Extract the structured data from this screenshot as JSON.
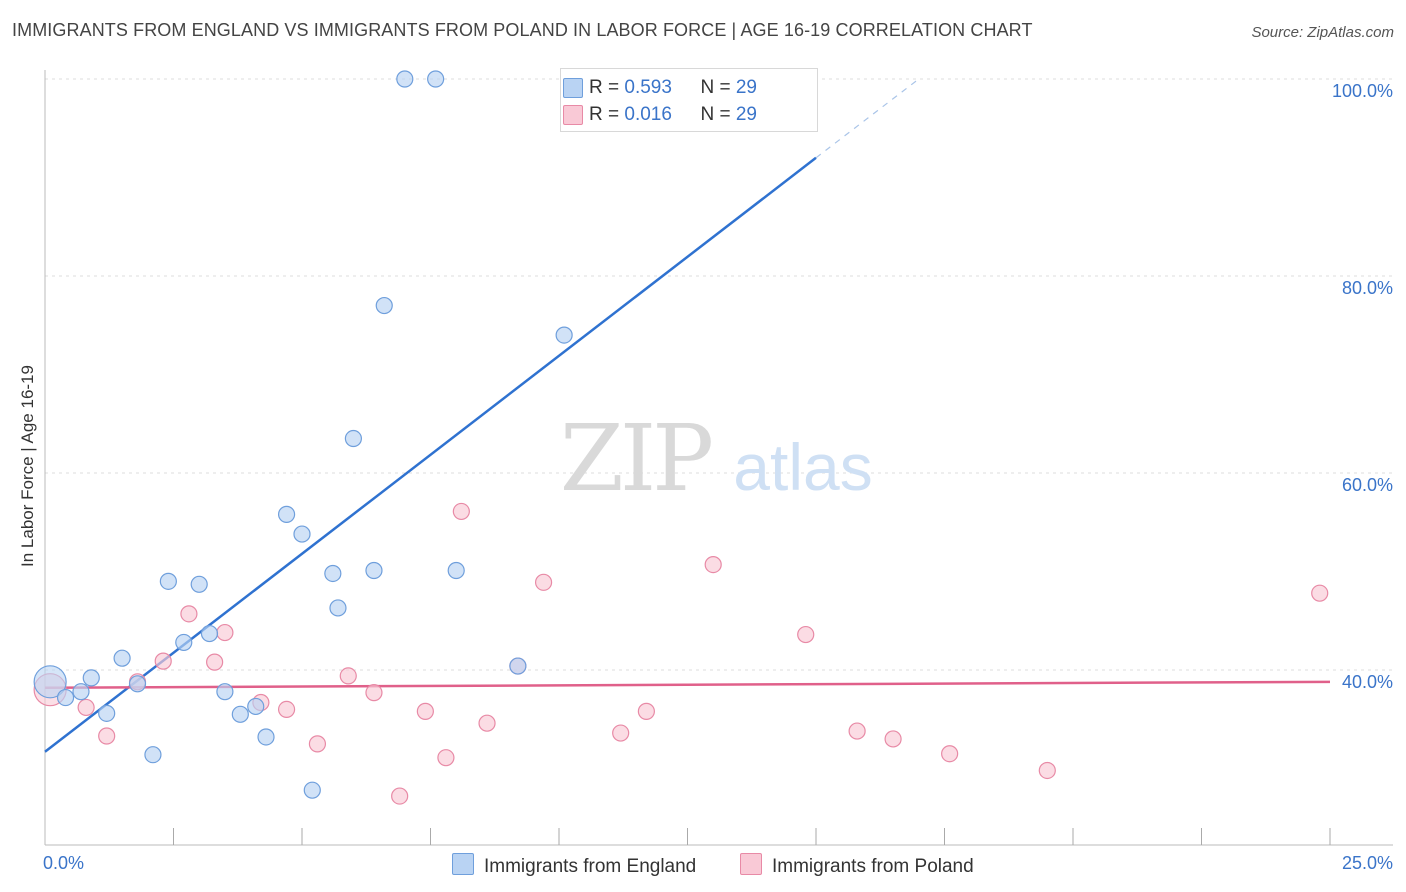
{
  "title": "IMMIGRANTS FROM ENGLAND VS IMMIGRANTS FROM POLAND IN LABOR FORCE | AGE 16-19 CORRELATION CHART",
  "source": "Source: ZipAtlas.com",
  "watermark": {
    "part1": "ZIP",
    "part2": "atlas"
  },
  "colors": {
    "england_fill": "#b9d3f3",
    "england_stroke": "#6f9fdc",
    "england_line": "#2f72d0",
    "poland_fill": "#f9c9d6",
    "poland_stroke": "#e88aa6",
    "poland_line": "#e0608a",
    "value_text": "#3a74c9",
    "grid": "#dddddd"
  },
  "legend_top": {
    "rows": [
      {
        "r_label": "R = ",
        "r_value": "0.593",
        "n_label": "N = ",
        "n_value": "29"
      },
      {
        "r_label": "R = ",
        "r_value": "0.016",
        "n_label": "N = ",
        "n_value": "29"
      }
    ]
  },
  "legend_bottom": {
    "england": "Immigrants from England",
    "poland": "Immigrants from Poland"
  },
  "chart_data": {
    "type": "scatter",
    "title": "IMMIGRANTS FROM ENGLAND VS IMMIGRANTS FROM POLAND IN LABOR FORCE | AGE 16-19 CORRELATION CHART",
    "xlabel": "",
    "ylabel": "In Labor Force | Age 16-19",
    "xlim": [
      0,
      25
    ],
    "ylim": [
      20,
      102
    ],
    "x_tick_labels": [
      "0.0%",
      "25.0%"
    ],
    "y_ticks": [
      {
        "value": 40,
        "label": "40.0%"
      },
      {
        "value": 60,
        "label": "60.0%"
      },
      {
        "value": 80,
        "label": "80.0%"
      },
      {
        "value": 100,
        "label": "100.0%"
      }
    ],
    "grid": true,
    "series": [
      {
        "name": "Immigrants from England",
        "r": 0.593,
        "n": 29,
        "points": [
          [
            0.1,
            38.8
          ],
          [
            0.4,
            37.2
          ],
          [
            0.7,
            37.8
          ],
          [
            0.9,
            39.2
          ],
          [
            1.2,
            35.6
          ],
          [
            1.5,
            41.2
          ],
          [
            1.8,
            38.6
          ],
          [
            2.1,
            31.4
          ],
          [
            2.4,
            49.0
          ],
          [
            2.7,
            42.8
          ],
          [
            3.0,
            48.7
          ],
          [
            3.2,
            43.7
          ],
          [
            3.5,
            37.8
          ],
          [
            3.8,
            35.5
          ],
          [
            4.1,
            36.3
          ],
          [
            4.3,
            33.2
          ],
          [
            4.7,
            55.8
          ],
          [
            5.0,
            53.8
          ],
          [
            5.2,
            27.8
          ],
          [
            5.6,
            49.8
          ],
          [
            5.7,
            46.3
          ],
          [
            6.0,
            63.5
          ],
          [
            6.4,
            50.1
          ],
          [
            6.6,
            77.0
          ],
          [
            7.0,
            100.0
          ],
          [
            7.6,
            100.0
          ],
          [
            8.0,
            50.1
          ],
          [
            9.2,
            40.4
          ],
          [
            10.1,
            74.0
          ]
        ],
        "trend": {
          "x0": 0,
          "y0": 31.7,
          "x1": 15,
          "y1": 92.0,
          "dashed_to_x": 17,
          "dashed_to_y": 100.0
        }
      },
      {
        "name": "Immigrants from Poland",
        "r": 0.016,
        "n": 29,
        "points": [
          [
            0.1,
            38.0
          ],
          [
            0.8,
            36.2
          ],
          [
            1.2,
            33.3
          ],
          [
            1.8,
            38.8
          ],
          [
            2.3,
            40.9
          ],
          [
            2.8,
            45.7
          ],
          [
            3.3,
            40.8
          ],
          [
            3.5,
            43.8
          ],
          [
            4.2,
            36.7
          ],
          [
            4.7,
            36.0
          ],
          [
            5.3,
            32.5
          ],
          [
            5.9,
            39.4
          ],
          [
            6.4,
            37.7
          ],
          [
            6.9,
            27.2
          ],
          [
            7.4,
            35.8
          ],
          [
            7.8,
            31.1
          ],
          [
            8.1,
            56.1
          ],
          [
            8.6,
            34.6
          ],
          [
            9.2,
            40.4
          ],
          [
            9.7,
            48.9
          ],
          [
            11.2,
            33.6
          ],
          [
            11.7,
            35.8
          ],
          [
            13.0,
            50.7
          ],
          [
            14.8,
            43.6
          ],
          [
            15.8,
            33.8
          ],
          [
            16.5,
            33.0
          ],
          [
            17.6,
            31.5
          ],
          [
            19.5,
            29.8
          ],
          [
            24.8,
            47.8
          ]
        ],
        "trend": {
          "x0": 0,
          "y0": 38.2,
          "x1": 25,
          "y1": 38.8
        }
      }
    ]
  }
}
